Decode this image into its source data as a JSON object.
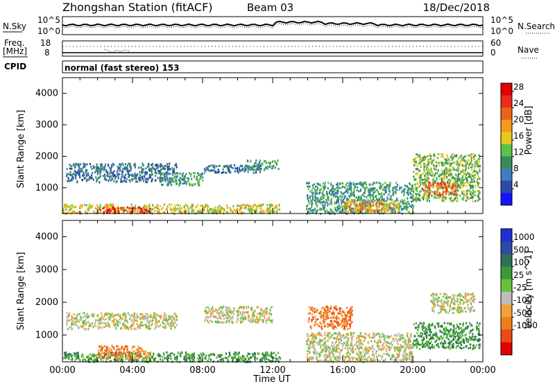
{
  "header": {
    "station": "Zhongshan Station (fitACF)",
    "beam": "Beam 03",
    "date": "18/Dec/2018"
  },
  "strip1": {
    "left_label": "N.Sky",
    "left_ticks": [
      "10^5",
      "10^0"
    ],
    "right_ticks": [
      "10^5",
      "10^0"
    ],
    "right_label": "N.Search"
  },
  "strip2": {
    "left_label_1": "Freq.",
    "left_label_2": "[MHz]",
    "left_ticks": [
      "18",
      "8"
    ],
    "right_ticks": [
      "60",
      "0"
    ],
    "right_label": "Nave"
  },
  "strip3": {
    "left_label": "CPID",
    "mode_text": "normal (fast stereo) 153"
  },
  "chart_data": [
    {
      "type": "heatmap",
      "title": "",
      "xlabel": "Time UT",
      "ylabel": "Slant Range [km]",
      "xlim": [
        "00:00",
        "24:00"
      ],
      "x_ticks": [
        "00:00",
        "04:00",
        "08:00",
        "12:00",
        "16:00",
        "20:00",
        "00:00"
      ],
      "ylim": [
        180,
        4500
      ],
      "y_ticks": [
        "1000",
        "2000",
        "3000",
        "4000"
      ],
      "colorbar": {
        "label": "Power [dB]",
        "range": [
          0,
          30
        ],
        "ticks": [
          "4",
          "8",
          "12",
          "16",
          "20",
          "24",
          "28"
        ],
        "colors": [
          "#1414ff",
          "#2c4aa6",
          "#3d7cc0",
          "#3b8a5a",
          "#59c24a",
          "#e6c81e",
          "#f59a1e",
          "#e8641a",
          "#ee2a1a",
          "#e00000"
        ]
      },
      "regions": [
        {
          "t0": 0.0,
          "t1": 12.4,
          "r0": 200,
          "r1": 500,
          "v": 18
        },
        {
          "t0": 2.0,
          "t1": 5.0,
          "r0": 220,
          "r1": 420,
          "v": 28
        },
        {
          "t0": 0.2,
          "t1": 6.5,
          "r0": 1200,
          "r1": 1800,
          "v": 7
        },
        {
          "t0": 5.5,
          "t1": 8.0,
          "r0": 1100,
          "r1": 1500,
          "v": 9
        },
        {
          "t0": 8.0,
          "t1": 11.5,
          "r0": 1500,
          "r1": 1750,
          "v": 8
        },
        {
          "t0": 10.5,
          "t1": 12.3,
          "r0": 1600,
          "r1": 1900,
          "v": 10
        },
        {
          "t0": 13.9,
          "t1": 20.0,
          "r0": 200,
          "r1": 1200,
          "v": 9
        },
        {
          "t0": 16.0,
          "t1": 19.2,
          "r0": 250,
          "r1": 600,
          "v": 20
        },
        {
          "t0": 20.0,
          "t1": 23.8,
          "r0": 600,
          "r1": 2100,
          "v": 12
        },
        {
          "t0": 20.5,
          "t1": 22.5,
          "r0": 800,
          "r1": 1200,
          "v": 22
        }
      ]
    },
    {
      "type": "heatmap",
      "title": "",
      "xlabel": "Time UT",
      "ylabel": "Slant Range [km]",
      "xlim": [
        "00:00",
        "24:00"
      ],
      "x_ticks": [
        "00:00",
        "04:00",
        "08:00",
        "12:00",
        "16:00",
        "20:00",
        "00:00"
      ],
      "ylim": [
        180,
        4500
      ],
      "y_ticks": [
        "1000",
        "2000",
        "3000",
        "4000"
      ],
      "colorbar": {
        "label": "Velocity [m s^-1]",
        "ticks": [
          "1000",
          "500",
          "100",
          "25",
          "-25",
          "-100",
          "-500",
          "-1000"
        ],
        "colors": [
          "#2030d0",
          "#2c4aa6",
          "#2f6f55",
          "#3b9a3b",
          "#66c23c",
          "#bdbdbd",
          "#f2a23a",
          "#ef7d1a",
          "#ee4a16",
          "#e00000"
        ]
      },
      "regions": [
        {
          "t0": 0.0,
          "t1": 12.4,
          "r0": 200,
          "r1": 500,
          "v": 250
        },
        {
          "t0": 2.0,
          "t1": 5.0,
          "r0": 300,
          "r1": 700,
          "v": -300
        },
        {
          "t0": 0.2,
          "t1": 6.5,
          "r0": 1200,
          "r1": 1700,
          "v": 0
        },
        {
          "t0": 8.0,
          "t1": 12.0,
          "r0": 1400,
          "r1": 1900,
          "v": 0
        },
        {
          "t0": 13.9,
          "t1": 20.0,
          "r0": 200,
          "r1": 1100,
          "v": 0
        },
        {
          "t0": 14.0,
          "t1": 16.5,
          "r0": 1200,
          "r1": 1900,
          "v": -250
        },
        {
          "t0": 20.0,
          "t1": 23.8,
          "r0": 600,
          "r1": 1400,
          "v": 200
        },
        {
          "t0": 21.0,
          "t1": 23.5,
          "r0": 1700,
          "r1": 2300,
          "v": 0
        }
      ]
    }
  ]
}
